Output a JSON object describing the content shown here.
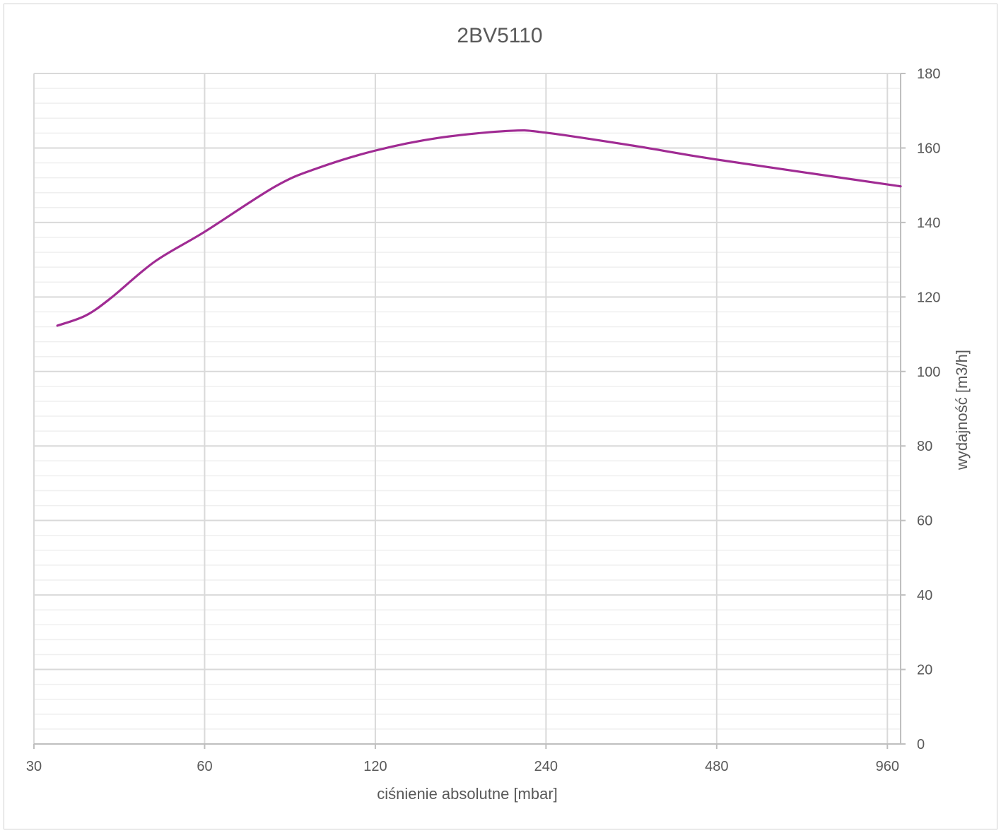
{
  "chart_data": {
    "type": "line",
    "title": "2BV5110",
    "xlabel": "ciśnienie absolutne [mbar]",
    "ylabel": "wydajność [m3/h]",
    "x_scale": "log2",
    "xlim": [
      30,
      1013
    ],
    "ylim": [
      0,
      180
    ],
    "x_ticks": [
      "30",
      "60",
      "120",
      "240",
      "480",
      "960"
    ],
    "y_ticks": [
      "0",
      "20",
      "40",
      "60",
      "80",
      "100",
      "120",
      "140",
      "160",
      "180"
    ],
    "y_axis_side": "right",
    "grid": true,
    "legend": "none",
    "series": [
      {
        "color": "#A02B93",
        "x": [
          33,
          37,
          41,
          49,
          60,
          80,
          95,
          120,
          155,
          207,
          240,
          346,
          480,
          1013
        ],
        "y": [
          112.3,
          115,
          119.7,
          129.5,
          137.5,
          149.7,
          154.6,
          159.3,
          162.7,
          164.6,
          164.1,
          160.5,
          156.9,
          149.7
        ]
      }
    ]
  }
}
